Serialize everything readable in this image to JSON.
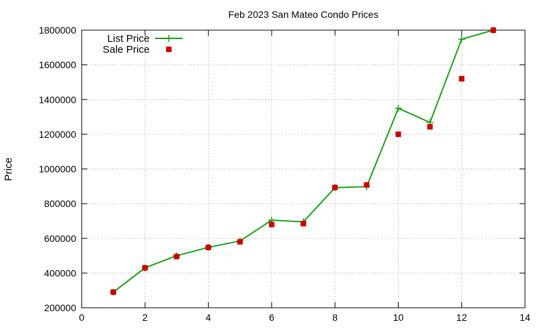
{
  "chart_data": {
    "type": "line",
    "title": "Feb 2023 San Mateo Condo Prices",
    "xlabel": "",
    "ylabel": "Price",
    "xlim": [
      0,
      14
    ],
    "ylim": [
      200000,
      1800000
    ],
    "xticks": [
      0,
      2,
      4,
      6,
      8,
      10,
      12,
      14
    ],
    "yticks": [
      200000,
      400000,
      600000,
      800000,
      1000000,
      1200000,
      1400000,
      1600000,
      1800000
    ],
    "grid": true,
    "legend_position": "top-left",
    "series": [
      {
        "name": "List Price",
        "style": "line-with-plus-markers",
        "color": "#1aa01a",
        "x": [
          1,
          2,
          3,
          4,
          5,
          6,
          7,
          8,
          9,
          10,
          11,
          12,
          13
        ],
        "y": [
          290000,
          430000,
          500000,
          548000,
          585000,
          705000,
          695000,
          892000,
          898000,
          1350000,
          1268000,
          1748000,
          1800000
        ]
      },
      {
        "name": "Sale Price",
        "style": "square-markers",
        "color": "#cc0000",
        "x": [
          1,
          2,
          3,
          4,
          5,
          6,
          7,
          8,
          9,
          10,
          11,
          12,
          13
        ],
        "y": [
          290000,
          430000,
          495000,
          548000,
          580000,
          680000,
          685000,
          893000,
          908000,
          1200000,
          1243000,
          1520000,
          1800000
        ]
      }
    ]
  }
}
